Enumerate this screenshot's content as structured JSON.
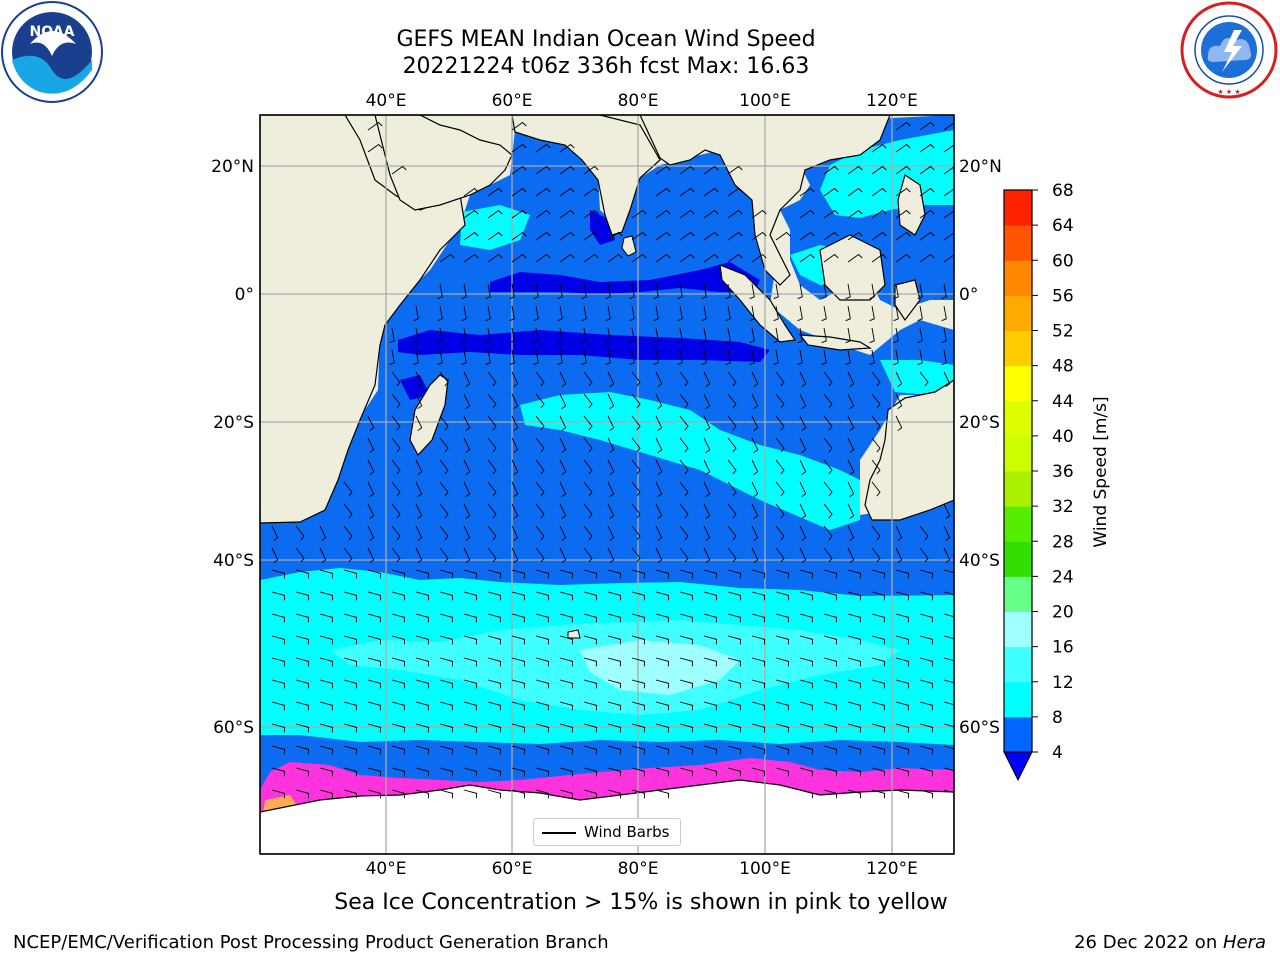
{
  "header": {
    "title_line1": "GEFS MEAN Indian Ocean Wind Speed",
    "title_line2": "20221224 t06z 336h fcst   Max: 16.63"
  },
  "logos": {
    "left": {
      "icon": "noaa-logo",
      "text": "NOAA",
      "ring_text": "NATIONAL OCEANIC AND ATMOSPHERIC ADMINISTRATION · U.S. DEPARTMENT OF COMMERCE"
    },
    "right": {
      "icon": "nws-logo",
      "ring_text": "NATIONAL WEATHER SERVICE"
    }
  },
  "map": {
    "lon_labels": [
      "40°E",
      "60°E",
      "80°E",
      "100°E",
      "120°E"
    ],
    "lat_labels": [
      "20°N",
      "0°",
      "20°S",
      "40°S",
      "60°S"
    ],
    "lon_range": [
      20,
      130
    ],
    "lat_range": [
      -70,
      28
    ],
    "legend_label": "Wind Barbs",
    "colors": {
      "land": "#efeedd",
      "ocean_4_8": "#0b6cf2",
      "ocean_lt4": "#0000e6",
      "ocean_8_12": "#00ffff",
      "ocean_12_16": "#3fffff",
      "ocean_16_20": "#a0ffff",
      "ice": "#ffffff",
      "ice_edge": "#ff00ff"
    }
  },
  "colorbar": {
    "label": "Wind Speed [m/s]",
    "ticks": [
      "4",
      "8",
      "12",
      "16",
      "20",
      "24",
      "28",
      "32",
      "36",
      "40",
      "44",
      "48",
      "52",
      "56",
      "60",
      "64",
      "68"
    ],
    "colors": [
      "#0066ff",
      "#00ffff",
      "#3fffff",
      "#a0ffff",
      "#66ff88",
      "#33dd00",
      "#55ee00",
      "#aaee00",
      "#ccff00",
      "#ddff00",
      "#ffff00",
      "#ffcc00",
      "#ffaa00",
      "#ff8800",
      "#ff5500",
      "#ff2200",
      "#ff0000"
    ],
    "under_color": "#0000ff"
  },
  "footer": {
    "note": "Sea Ice Concentration > 15% is shown in pink to yellow",
    "credit_left": "NCEP/EMC/Verification Post Processing Product Generation Branch",
    "credit_date": "26 Dec 2022 on ",
    "credit_host": "Hera"
  }
}
